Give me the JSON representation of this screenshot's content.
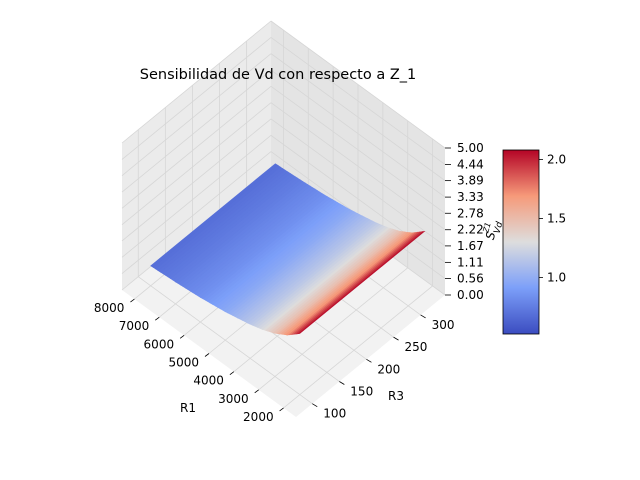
{
  "chart_data": {
    "type": "surface3d",
    "title": "Sensibilidad de Vd con respecto a Z_1",
    "xlabel": "R1",
    "ylabel": "R3",
    "zlabel": "S^{Z_1}_{Vd}",
    "zlabel_main": "S",
    "zlabel_sub": "Vd",
    "zlabel_sup": "Z1",
    "xlim": [
      1500,
      8500
    ],
    "ylim": [
      70,
      345
    ],
    "zlim": [
      0,
      5
    ],
    "xticks": [
      "2000",
      "3000",
      "4000",
      "5000",
      "6000",
      "7000",
      "8000"
    ],
    "yticks": [
      "100",
      "150",
      "200",
      "250",
      "300"
    ],
    "zticks": [
      "0.00",
      "0.56",
      "1.11",
      "1.67",
      "2.22",
      "2.78",
      "3.33",
      "3.89",
      "4.44",
      "5.00"
    ],
    "surface": {
      "r1_range": [
        2000,
        8000
      ],
      "r3_range": [
        100,
        330
      ],
      "samples_r1": [
        2000,
        2500,
        3000,
        3500,
        4000,
        5000,
        6000,
        7000,
        8000
      ],
      "values": [
        2.08,
        1.72,
        1.47,
        1.29,
        1.16,
        0.97,
        0.84,
        0.75,
        0.68
      ],
      "depends_on_r3": false
    },
    "colormap": "coolwarm",
    "colorbar": {
      "min": 0.52,
      "max": 2.08,
      "ticks": [
        "1.0",
        "1.5",
        "2.0"
      ]
    },
    "grid": true
  },
  "colors": {
    "pane_x": "#ebebeb",
    "pane_y": "#e4e4e4",
    "pane_floor": "#f2f2f2",
    "grid": "#d6d6d6"
  }
}
